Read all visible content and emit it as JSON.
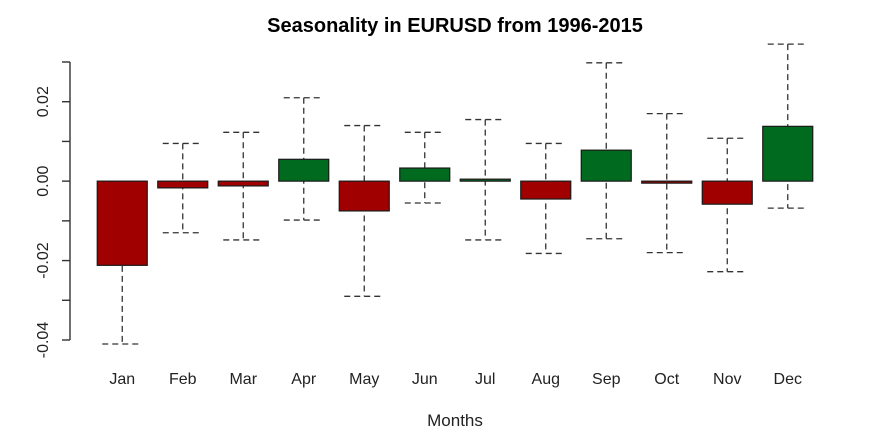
{
  "chart_data": {
    "type": "bar",
    "title": "Seasonality in EURUSD from 1996-2015",
    "xlabel": "Months",
    "ylabel": "",
    "ylim": [
      -0.045,
      0.035
    ],
    "yticks": [
      -0.04,
      -0.02,
      0.0,
      0.02
    ],
    "ytick_labels": [
      "-0.04",
      "-0.02",
      "0.00",
      "0.02"
    ],
    "categories": [
      "Jan",
      "Feb",
      "Mar",
      "Apr",
      "May",
      "Jun",
      "Jul",
      "Aug",
      "Sep",
      "Oct",
      "Nov",
      "Dec"
    ],
    "values": [
      -0.0212,
      -0.0017,
      -0.0012,
      0.0055,
      -0.0075,
      0.0033,
      0.0005,
      -0.0045,
      0.0078,
      -0.0005,
      -0.0058,
      0.0138
    ],
    "upper": [
      -0.0012,
      0.0095,
      0.0123,
      0.021,
      0.014,
      0.0123,
      0.0155,
      0.0095,
      0.0298,
      0.017,
      0.0108,
      0.0345
    ],
    "lower": [
      -0.041,
      -0.013,
      -0.0148,
      -0.0098,
      -0.029,
      -0.0055,
      -0.0148,
      -0.0182,
      -0.0145,
      -0.018,
      -0.0228,
      -0.0068
    ],
    "colors": {
      "positive": "#006b1f",
      "negative": "#a00000"
    },
    "grid": false,
    "legend": "none"
  }
}
